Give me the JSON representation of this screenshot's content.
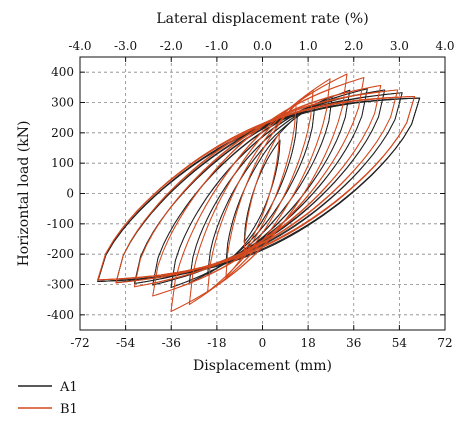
{
  "chart_data": {
    "type": "line",
    "title": "",
    "xlabel": "Displacement (mm)",
    "ylabel": "Horizontal load (kN)",
    "x2label": "Lateral displacement rate (%)",
    "xlim": [
      -72,
      72
    ],
    "ylim": [
      -450,
      450
    ],
    "x2lim": [
      -4.0,
      4.0
    ],
    "x_ticks": [
      "-72",
      "-54",
      "-36",
      "-18",
      "0",
      "18",
      "36",
      "54",
      "72"
    ],
    "x2_ticks": [
      "-4.0",
      "-3.0",
      "-2.0",
      "-1.0",
      "0.0",
      "1.0",
      "2.0",
      "3.0",
      "4.0"
    ],
    "y_ticks": [
      "-400",
      "-300",
      "-200",
      "-100",
      "0",
      "100",
      "200",
      "300",
      "400"
    ],
    "grid": true,
    "legend_position": "bottom-left",
    "series": [
      {
        "name": "A1",
        "color": "#222222",
        "envelope": [
          [
            -65,
            -290
          ],
          [
            -54,
            -295
          ],
          [
            -45,
            -300
          ],
          [
            -36,
            -310
          ],
          [
            -27,
            -290
          ],
          [
            -18,
            -250
          ],
          [
            -9,
            -200
          ],
          [
            0,
            0
          ],
          [
            9,
            230
          ],
          [
            18,
            280
          ],
          [
            27,
            320
          ],
          [
            36,
            345
          ],
          [
            45,
            345
          ],
          [
            54,
            335
          ],
          [
            62,
            315
          ]
        ]
      },
      {
        "name": "B1",
        "color": "#d4491f",
        "envelope": [
          [
            -65,
            -285
          ],
          [
            -54,
            -300
          ],
          [
            -45,
            -320
          ],
          [
            -38,
            -395
          ],
          [
            -27,
            -360
          ],
          [
            -18,
            -300
          ],
          [
            -9,
            -240
          ],
          [
            0,
            0
          ],
          [
            9,
            270
          ],
          [
            18,
            330
          ],
          [
            27,
            380
          ],
          [
            36,
            400
          ],
          [
            45,
            360
          ],
          [
            54,
            340
          ],
          [
            60,
            320
          ]
        ]
      }
    ]
  }
}
